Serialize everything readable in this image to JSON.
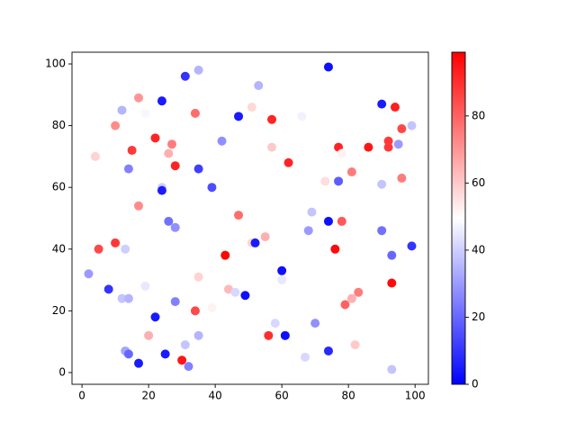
{
  "chart_data": {
    "type": "scatter",
    "colormap": "bwr",
    "x": [
      2,
      4,
      5,
      8,
      10,
      10,
      12,
      12,
      13,
      13,
      14,
      14,
      14,
      15,
      17,
      17,
      17,
      19,
      19,
      20,
      22,
      22,
      24,
      24,
      24,
      25,
      26,
      26,
      27,
      28,
      28,
      28,
      30,
      31,
      31,
      32,
      34,
      34,
      35,
      35,
      35,
      35,
      39,
      39,
      42,
      43,
      44,
      46,
      47,
      47,
      49,
      51,
      51,
      52,
      53,
      55,
      56,
      57,
      57,
      58,
      60,
      60,
      61,
      62,
      66,
      67,
      68,
      69,
      70,
      73,
      74,
      74,
      74,
      76,
      77,
      77,
      78,
      78,
      79,
      81,
      81,
      82,
      83,
      86,
      90,
      90,
      90,
      92,
      92,
      93,
      93,
      93,
      94,
      95,
      96,
      96,
      99,
      99
    ],
    "values": [
      32,
      70,
      40,
      27,
      80,
      42,
      85,
      24,
      40,
      7,
      66,
      24,
      6,
      72,
      89,
      54,
      3,
      84,
      28,
      12,
      76,
      18,
      88,
      60,
      59,
      6,
      71,
      49,
      74,
      67,
      47,
      23,
      4,
      96,
      9,
      2,
      84,
      20,
      98,
      66,
      31,
      12,
      60,
      21,
      75,
      38,
      27,
      26,
      83,
      51,
      25,
      86,
      42,
      42,
      93,
      44,
      12,
      82,
      73,
      16,
      33,
      30,
      12,
      68,
      83,
      5,
      46,
      52,
      16,
      62,
      99,
      49,
      7,
      40,
      73,
      62,
      71,
      49,
      22,
      65,
      24,
      9,
      26,
      73,
      87,
      61,
      46,
      75,
      73,
      38,
      29,
      1,
      86,
      74,
      79,
      63,
      80,
      41
    ],
    "color_values": [
      30,
      58,
      85,
      10,
      72,
      88,
      35,
      38,
      40,
      32,
      25,
      35,
      20,
      88,
      70,
      72,
      5,
      48,
      45,
      65,
      92,
      5,
      5,
      40,
      5,
      5,
      65,
      22,
      75,
      92,
      28,
      25,
      95,
      10,
      38,
      25,
      78,
      85,
      35,
      12,
      58,
      35,
      15,
      52,
      28,
      98,
      63,
      42,
      5,
      78,
      3,
      57,
      58,
      5,
      35,
      65,
      90,
      92,
      60,
      42,
      3,
      45,
      3,
      92,
      47,
      42,
      30,
      38,
      28,
      56,
      3,
      3,
      8,
      97,
      92,
      18,
      52,
      82,
      80,
      75,
      65,
      60,
      75,
      95,
      5,
      38,
      22,
      88,
      88,
      20,
      97,
      38,
      93,
      30,
      85,
      75,
      38,
      10
    ],
    "xlim": [
      -3,
      104
    ],
    "ylim": [
      -3.8,
      103.8
    ],
    "xticks": [
      0,
      20,
      40,
      60,
      80,
      100
    ],
    "yticks": [
      0,
      20,
      40,
      60,
      80,
      100
    ],
    "clim": [
      0,
      99
    ],
    "colorbar_ticks": [
      0,
      20,
      40,
      60,
      80
    ]
  }
}
